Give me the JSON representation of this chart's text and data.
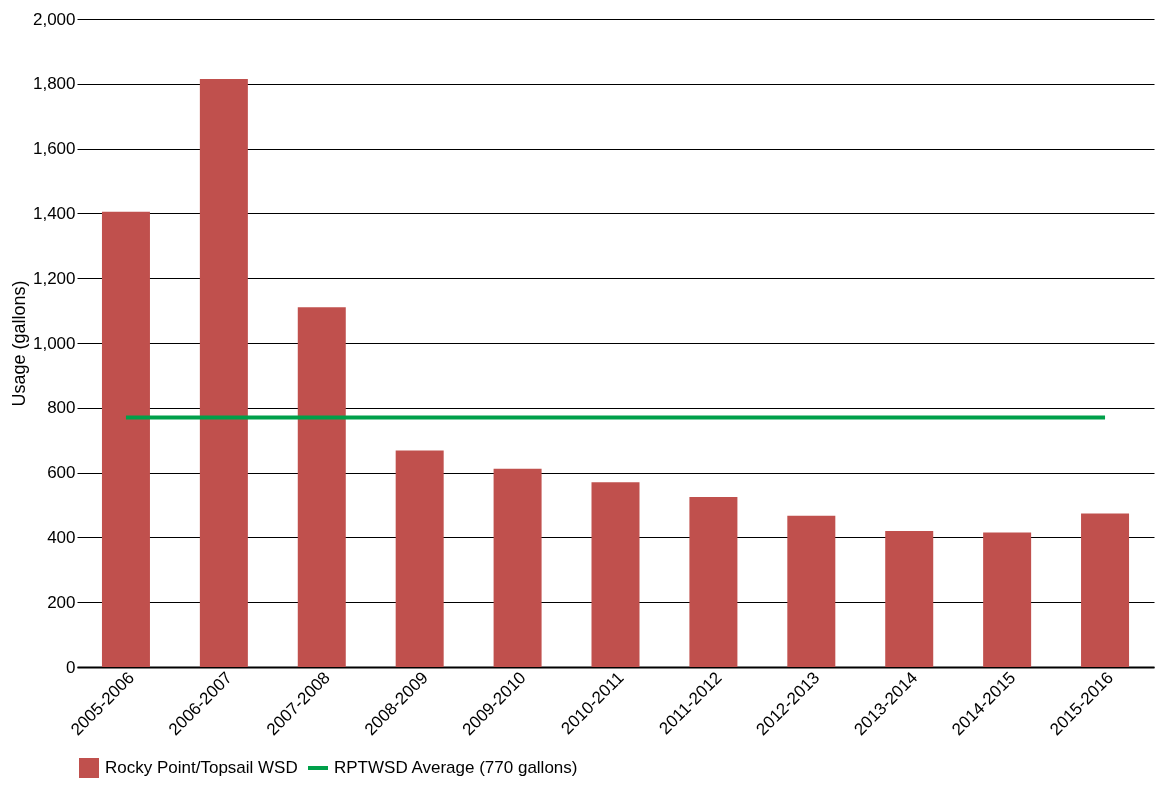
{
  "chart_data": {
    "type": "bar",
    "ylabel": "Usage (gallons)",
    "categories": [
      "2005-2006",
      "2006-2007",
      "2007-2008",
      "2008-2009",
      "2009-2010",
      "2010-2011",
      "2011-2012",
      "2012-2013",
      "2013-2014",
      "2014-2015",
      "2015-2016"
    ],
    "series": [
      {
        "name": "Rocky Point/Topsail WSD",
        "color": "#c0504d",
        "values": [
          1405,
          1815,
          1110,
          668,
          612,
          570,
          525,
          467,
          420,
          415,
          474
        ]
      },
      {
        "name": "RPTWSD Average (770 gallons)",
        "type": "line",
        "color": "#00a04a",
        "values": [
          770,
          770,
          770,
          770,
          770,
          770,
          770,
          770,
          770,
          770,
          770
        ]
      }
    ],
    "ylim": [
      0,
      2000
    ],
    "yticks": [
      0,
      200,
      400,
      600,
      800,
      {
        "value": 1000,
        "label": "1,000"
      },
      {
        "value": 1200,
        "label": "1,200"
      },
      {
        "value": 1400,
        "label": "1,400"
      },
      {
        "value": 1600,
        "label": "1,600"
      },
      {
        "value": 1800,
        "label": "1,800"
      },
      {
        "value": 2000,
        "label": "2,000"
      }
    ],
    "grid": "y",
    "legend": "bottom"
  }
}
